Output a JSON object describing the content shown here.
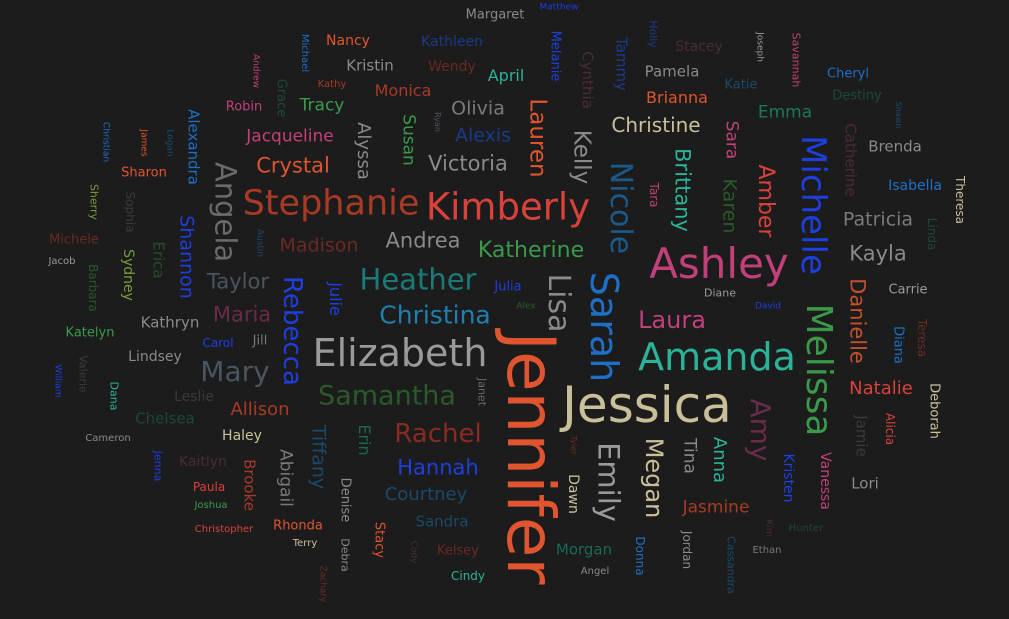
{
  "background_color": "#1c1c1c",
  "words": [
    {
      "text": "Jennifer",
      "color": "#e0552f"
    },
    {
      "text": "Jessica",
      "color": "#c9c09a"
    },
    {
      "text": "Ashley",
      "color": "#c2407a"
    },
    {
      "text": "Amanda",
      "color": "#2bb39a"
    },
    {
      "text": "Elizabeth",
      "color": "#9a9a9a"
    },
    {
      "text": "Kimberly",
      "color": "#d9423a"
    },
    {
      "text": "Stephanie",
      "color": "#a83a26"
    },
    {
      "text": "Sarah",
      "color": "#1e6fc7"
    },
    {
      "text": "Melissa",
      "color": "#3a9a4a"
    },
    {
      "text": "Michelle",
      "color": "#1e3fe0"
    },
    {
      "text": "Heather",
      "color": "#1a7a7a"
    },
    {
      "text": "Nicole",
      "color": "#1a5a8a"
    },
    {
      "text": "Lisa",
      "color": "#8a8a8a"
    },
    {
      "text": "Emily",
      "color": "#9a9a9a"
    },
    {
      "text": "Megan",
      "color": "#c9c09a"
    },
    {
      "text": "Christina",
      "color": "#1e7fb0"
    },
    {
      "text": "Samantha",
      "color": "#2a5a2a"
    },
    {
      "text": "Mary",
      "color": "#4a5560"
    },
    {
      "text": "Rachel",
      "color": "#8a2a22"
    },
    {
      "text": "Amy",
      "color": "#6a2a4a"
    },
    {
      "text": "Angela",
      "color": "#6a6a6a"
    },
    {
      "text": "Rebecca",
      "color": "#1e3fe0"
    },
    {
      "text": "Laura",
      "color": "#c2407a"
    },
    {
      "text": "Hannah",
      "color": "#1e3fe0"
    },
    {
      "text": "Katherine",
      "color": "#3a9a4a"
    },
    {
      "text": "Lauren",
      "color": "#e0552f"
    },
    {
      "text": "Kelly",
      "color": "#8a8a8a"
    },
    {
      "text": "Amber",
      "color": "#d9423a"
    },
    {
      "text": "Danielle",
      "color": "#c2502a"
    },
    {
      "text": "Brittany",
      "color": "#2bb39a"
    },
    {
      "text": "Andrea",
      "color": "#8a8a8a"
    },
    {
      "text": "Crystal",
      "color": "#e0552f"
    },
    {
      "text": "Victoria",
      "color": "#8a8a8a"
    },
    {
      "text": "Kayla",
      "color": "#8a8a8a"
    },
    {
      "text": "Courtney",
      "color": "#1a4a6a"
    },
    {
      "text": "Shannon",
      "color": "#1e3fe0"
    },
    {
      "text": "Tiffany",
      "color": "#1a4a6a"
    },
    {
      "text": "Christine",
      "color": "#c9c09a"
    },
    {
      "text": "Madison",
      "color": "#6a2a22"
    },
    {
      "text": "Patricia",
      "color": "#7a7a7a"
    },
    {
      "text": "Allison",
      "color": "#a83a26"
    },
    {
      "text": "Taylor",
      "color": "#4a5560"
    },
    {
      "text": "Maria",
      "color": "#6a2a4a"
    },
    {
      "text": "Alexis",
      "color": "#1a3a8a"
    },
    {
      "text": "Olivia",
      "color": "#7a7a7a"
    },
    {
      "text": "Natalie",
      "color": "#d9423a"
    },
    {
      "text": "Karen",
      "color": "#2a5a2a"
    },
    {
      "text": "Jasmine",
      "color": "#a83a26"
    },
    {
      "text": "Sara",
      "color": "#c2407a"
    },
    {
      "text": "Jacqueline",
      "color": "#c2407a"
    },
    {
      "text": "Alyssa",
      "color": "#8a8a8a"
    },
    {
      "text": "Susan",
      "color": "#3a9a4a"
    },
    {
      "text": "Abigail",
      "color": "#7a7a7a"
    },
    {
      "text": "Anna",
      "color": "#2bb39a"
    },
    {
      "text": "Emma",
      "color": "#1a7a5a"
    },
    {
      "text": "Brianna",
      "color": "#e0552f"
    },
    {
      "text": "Tina",
      "color": "#8a8a8a"
    },
    {
      "text": "Monica",
      "color": "#a83a26"
    },
    {
      "text": "Tracy",
      "color": "#3a9a4a"
    },
    {
      "text": "Julie",
      "color": "#1e3fe0"
    },
    {
      "text": "Cynthia",
      "color": "#4a2a3a"
    },
    {
      "text": "Pamela",
      "color": "#8a8a8a"
    },
    {
      "text": "Kristin",
      "color": "#8a8a8a"
    },
    {
      "text": "April",
      "color": "#2bb39a"
    },
    {
      "text": "Alexandra",
      "color": "#1e6fc7"
    },
    {
      "text": "Chelsea",
      "color": "#1a4a3a"
    },
    {
      "text": "Melanie",
      "color": "#1e3fe0"
    },
    {
      "text": "Tammy",
      "color": "#1a3a8a"
    },
    {
      "text": "Erin",
      "color": "#1a6a4a"
    },
    {
      "text": "Kathryn",
      "color": "#8a8a8a"
    },
    {
      "text": "Brooke",
      "color": "#a83a26"
    },
    {
      "text": "Sandra",
      "color": "#1a4a6a"
    },
    {
      "text": "Morgan",
      "color": "#1a6a5a"
    },
    {
      "text": "Catherine",
      "color": "#4a2a3a"
    },
    {
      "text": "Brenda",
      "color": "#8a8a8a"
    },
    {
      "text": "Isabella",
      "color": "#1e6fc7"
    },
    {
      "text": "Vanessa",
      "color": "#c2407a"
    },
    {
      "text": "Kristen",
      "color": "#1e3fe0"
    },
    {
      "text": "Erica",
      "color": "#2a4a2a"
    },
    {
      "text": "Sydney",
      "color": "#7a9a3a"
    },
    {
      "text": "Lindsey",
      "color": "#8a8a8a"
    },
    {
      "text": "Haley",
      "color": "#c9c09a"
    },
    {
      "text": "Dawn",
      "color": "#c9c09a"
    },
    {
      "text": "Kaitlyn",
      "color": "#4a2a3a"
    },
    {
      "text": "Nancy",
      "color": "#e0552f"
    },
    {
      "text": "Kathleen",
      "color": "#1a3a8a"
    },
    {
      "text": "Wendy",
      "color": "#6a2a22"
    },
    {
      "text": "Stacey",
      "color": "#4a2a3a"
    },
    {
      "text": "Robin",
      "color": "#c2407a"
    },
    {
      "text": "Lori",
      "color": "#8a8a8a"
    },
    {
      "text": "Katie",
      "color": "#1a4a6a"
    },
    {
      "text": "Cheryl",
      "color": "#1e6fc7"
    },
    {
      "text": "Destiny",
      "color": "#1a4a3a"
    },
    {
      "text": "Diana",
      "color": "#1e6fc7"
    },
    {
      "text": "Alicia",
      "color": "#d9423a"
    },
    {
      "text": "Deborah",
      "color": "#c9c09a"
    },
    {
      "text": "Jamie",
      "color": "#3a3a3a"
    },
    {
      "text": "Teresa",
      "color": "#6a2a22"
    },
    {
      "text": "Linda",
      "color": "#1a4a3a"
    },
    {
      "text": "Carrie",
      "color": "#9a9a9a"
    },
    {
      "text": "Theresa",
      "color": "#c9c09a"
    },
    {
      "text": "Sharon",
      "color": "#e0552f"
    },
    {
      "text": "Katelyn",
      "color": "#3a9a4a"
    },
    {
      "text": "Michele",
      "color": "#6a2a22"
    },
    {
      "text": "Barbara",
      "color": "#2a5a2a"
    },
    {
      "text": "Sophia",
      "color": "#3a3a3a"
    },
    {
      "text": "Sherry",
      "color": "#7a9a3a"
    },
    {
      "text": "Leslie",
      "color": "#3a3a3a"
    },
    {
      "text": "Denise",
      "color": "#8a8a8a"
    },
    {
      "text": "Debra",
      "color": "#8a8a8a"
    },
    {
      "text": "Stacy",
      "color": "#e0552f"
    },
    {
      "text": "Kelsey",
      "color": "#6a2a22"
    },
    {
      "text": "Rhonda",
      "color": "#e0552f"
    },
    {
      "text": "Paula",
      "color": "#d9423a"
    },
    {
      "text": "Dana",
      "color": "#2bb39a"
    },
    {
      "text": "Valerie",
      "color": "#3a3a3a"
    },
    {
      "text": "Jenna",
      "color": "#1e3fe0"
    },
    {
      "text": "Donna",
      "color": "#1e6fc7"
    },
    {
      "text": "Cassandra",
      "color": "#1a4a6a"
    },
    {
      "text": "Jordan",
      "color": "#8a8a8a"
    },
    {
      "text": "Margaret",
      "color": "#8a8a8a"
    },
    {
      "text": "Grace",
      "color": "#1a4a3a"
    },
    {
      "text": "Holly",
      "color": "#1a3a8a"
    },
    {
      "text": "Cindy",
      "color": "#2bb39a"
    },
    {
      "text": "Jill",
      "color": "#7a7a7a"
    },
    {
      "text": "Carol",
      "color": "#1e3fe0"
    },
    {
      "text": "Diane",
      "color": "#9a9a9a"
    },
    {
      "text": "Janet",
      "color": "#6a6a6a"
    },
    {
      "text": "Julia",
      "color": "#1e3fe0"
    },
    {
      "text": "Michael",
      "color": "#1e6fc7"
    },
    {
      "text": "Joseph",
      "color": "#9a9a9a"
    },
    {
      "text": "Savannah",
      "color": "#c2407a"
    },
    {
      "text": "Kathy",
      "color": "#a83a26"
    },
    {
      "text": "Christian",
      "color": "#1e6fc7"
    },
    {
      "text": "James",
      "color": "#e0552f"
    },
    {
      "text": "Logan",
      "color": "#1a4a6a"
    },
    {
      "text": "Jacob",
      "color": "#9a9a9a"
    },
    {
      "text": "Austin",
      "color": "#1a4a6a"
    },
    {
      "text": "Alex",
      "color": "#2a5a2a"
    },
    {
      "text": "David",
      "color": "#1e3fe0"
    },
    {
      "text": "Ryan",
      "color": "#4a5560"
    },
    {
      "text": "Andrew",
      "color": "#c2407a"
    },
    {
      "text": "Matthew",
      "color": "#1e3fe0"
    },
    {
      "text": "Tara",
      "color": "#c2407a"
    },
    {
      "text": "Shawn",
      "color": "#1a4a6a"
    },
    {
      "text": "William",
      "color": "#1e3fe0"
    },
    {
      "text": "Cameron",
      "color": "#8a8a8a"
    },
    {
      "text": "Joshua",
      "color": "#3a9a4a"
    },
    {
      "text": "Christopher",
      "color": "#d9423a"
    },
    {
      "text": "Terry",
      "color": "#c9c09a"
    },
    {
      "text": "Zachary",
      "color": "#6a2a22"
    },
    {
      "text": "Cody",
      "color": "#4a2a3a"
    },
    {
      "text": "Tyler",
      "color": "#6a2a22"
    },
    {
      "text": "Angel",
      "color": "#8a8a8a"
    },
    {
      "text": "Kim",
      "color": "#4a2a3a"
    },
    {
      "text": "Hunter",
      "color": "#1a4a3a"
    },
    {
      "text": "Ethan",
      "color": "#7a7a7a"
    }
  ]
}
